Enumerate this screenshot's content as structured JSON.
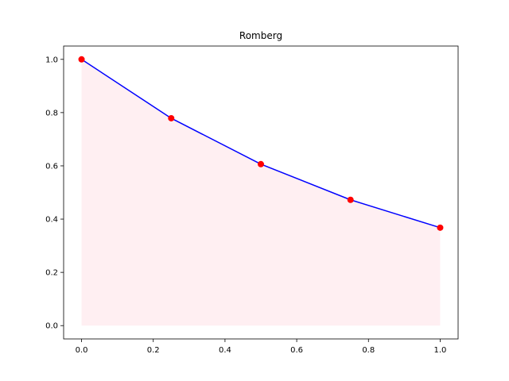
{
  "chart_data": {
    "type": "line",
    "title": "Romberg",
    "xlabel": "",
    "ylabel": "",
    "xlim": [
      -0.05,
      1.05
    ],
    "ylim": [
      -0.05,
      1.05
    ],
    "xticks": [
      0.0,
      0.2,
      0.4,
      0.6,
      0.8,
      1.0
    ],
    "xtick_labels": [
      "0.0",
      "0.2",
      "0.4",
      "0.6",
      "0.8",
      "1.0"
    ],
    "yticks": [
      0.0,
      0.2,
      0.4,
      0.6,
      0.8,
      1.0
    ],
    "ytick_labels": [
      "0.0",
      "0.2",
      "0.4",
      "0.6",
      "0.8",
      "1.0"
    ],
    "grid": false,
    "series": [
      {
        "x": [
          0.0,
          0.25,
          0.5,
          0.75,
          1.0
        ],
        "y": [
          1.0,
          0.7788,
          0.6065,
          0.4724,
          0.3679
        ],
        "line_color": "#0000ff",
        "marker_color": "#ff0000",
        "fill_color": "#ffc0cb",
        "fill_opacity": 0.25
      }
    ]
  }
}
